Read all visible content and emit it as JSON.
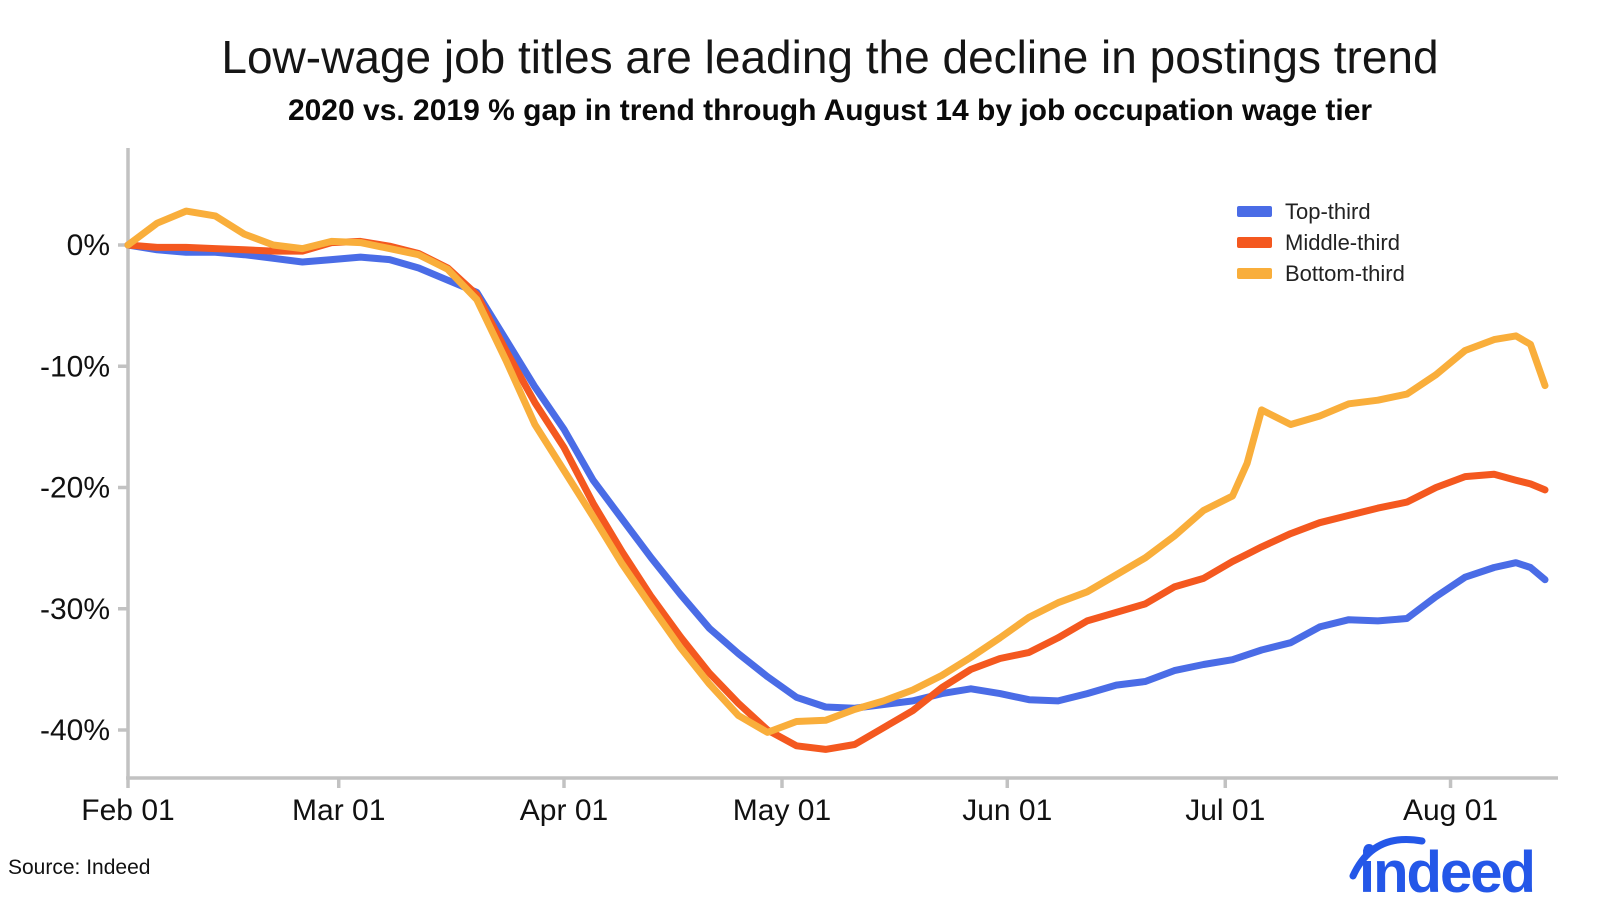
{
  "header": {
    "title": "Low-wage job titles are leading the decline in postings trend",
    "subtitle": "2020 vs. 2019 % gap in trend through August 14 by job occupation wage tier"
  },
  "footer": {
    "source": "Source: Indeed",
    "logo_text": "indeed",
    "logo_color": "#2457E8"
  },
  "colors": {
    "axis": "#C2C2C2",
    "tick_label": "#111111",
    "top_third": "#4A6CE6",
    "middle_third": "#F4581F",
    "bottom_third": "#F9AE3B"
  },
  "legend": [
    {
      "label": "Top-third",
      "color": "#4A6CE6"
    },
    {
      "label": "Middle-third",
      "color": "#F4581F"
    },
    {
      "label": "Bottom-third",
      "color": "#F9AE3B"
    }
  ],
  "chart_data": {
    "type": "line",
    "title": "Low-wage job titles are leading the decline in postings trend",
    "subtitle": "2020 vs. 2019 % gap in trend through August 14 by job occupation wage tier",
    "xlabel": "",
    "ylabel": "",
    "grid": false,
    "legend_position": "top-right",
    "x_unit": "days since Feb 01, 2020",
    "xlim_days": [
      0,
      195
    ],
    "ylim": [
      -44,
      8
    ],
    "x_tick_labels": [
      "Feb 01",
      "Mar 01",
      "Apr 01",
      "May 01",
      "Jun 01",
      "Jul 01",
      "Aug 01"
    ],
    "x_tick_days": [
      0,
      29,
      60,
      90,
      121,
      151,
      182
    ],
    "y_tick_labels": [
      "0%",
      "-10%",
      "-20%",
      "-30%",
      "-40%"
    ],
    "y_tick_values": [
      0,
      -10,
      -20,
      -30,
      -40
    ],
    "dates": [
      "Feb 01",
      "Feb 05",
      "Feb 09",
      "Feb 13",
      "Feb 17",
      "Feb 21",
      "Feb 25",
      "Feb 29",
      "Mar 04",
      "Mar 08",
      "Mar 12",
      "Mar 16",
      "Mar 20",
      "Mar 24",
      "Mar 28",
      "Apr 01",
      "Apr 05",
      "Apr 09",
      "Apr 13",
      "Apr 17",
      "Apr 21",
      "Apr 25",
      "Apr 29",
      "May 03",
      "May 07",
      "May 11",
      "May 15",
      "May 19",
      "May 23",
      "May 27",
      "May 31",
      "Jun 04",
      "Jun 08",
      "Jun 12",
      "Jun 16",
      "Jun 20",
      "Jun 24",
      "Jun 28",
      "Jul 02",
      "Jul 04",
      "Jul 06",
      "Jul 10",
      "Jul 14",
      "Jul 18",
      "Jul 22",
      "Jul 26",
      "Jul 30",
      "Aug 03",
      "Aug 07",
      "Aug 10",
      "Aug 12",
      "Aug 14"
    ],
    "days": [
      0,
      4,
      8,
      12,
      16,
      20,
      24,
      28,
      32,
      36,
      40,
      44,
      48,
      52,
      56,
      60,
      64,
      68,
      72,
      76,
      80,
      84,
      88,
      92,
      96,
      100,
      104,
      108,
      112,
      116,
      120,
      124,
      128,
      132,
      136,
      140,
      144,
      148,
      152,
      154,
      156,
      160,
      164,
      168,
      172,
      176,
      180,
      184,
      188,
      191,
      193,
      195
    ],
    "series": [
      {
        "name": "Top-third",
        "color": "#4A6CE6",
        "values": [
          0,
          -0.4,
          -0.6,
          -0.6,
          -0.8,
          -1.1,
          -1.4,
          -1.2,
          -1.0,
          -1.2,
          -1.9,
          -2.9,
          -3.9,
          -7.8,
          -11.7,
          -15.2,
          -19.4,
          -22.6,
          -25.8,
          -28.8,
          -31.6,
          -33.7,
          -35.6,
          -37.3,
          -38.1,
          -38.2,
          -37.9,
          -37.6,
          -37.0,
          -36.6,
          -37.0,
          -37.5,
          -37.6,
          -37.0,
          -36.3,
          -36.0,
          -35.1,
          -34.6,
          -34.2,
          -33.8,
          -33.4,
          -32.8,
          -31.5,
          -30.9,
          -31.0,
          -30.8,
          -29.0,
          -27.4,
          -26.6,
          -26.2,
          -26.6,
          -27.6
        ]
      },
      {
        "name": "Middle-third",
        "color": "#F4581F",
        "values": [
          0,
          -0.2,
          -0.2,
          -0.3,
          -0.4,
          -0.5,
          -0.5,
          0.2,
          0.3,
          -0.1,
          -0.7,
          -1.9,
          -4.1,
          -8.7,
          -13.0,
          -16.7,
          -21.3,
          -25.3,
          -29.0,
          -32.3,
          -35.3,
          -37.8,
          -40.0,
          -41.3,
          -41.6,
          -41.2,
          -39.8,
          -38.4,
          -36.5,
          -35.0,
          -34.1,
          -33.6,
          -32.4,
          -31.0,
          -30.3,
          -29.6,
          -28.2,
          -27.5,
          -26.1,
          -25.5,
          -24.9,
          -23.8,
          -22.9,
          -22.3,
          -21.7,
          -21.2,
          -20.0,
          -19.1,
          -18.9,
          -19.4,
          -19.7,
          -20.2
        ]
      },
      {
        "name": "Bottom-third",
        "color": "#F9AE3B",
        "values": [
          0,
          1.8,
          2.8,
          2.4,
          0.9,
          0.0,
          -0.3,
          0.3,
          0.2,
          -0.3,
          -0.8,
          -2.0,
          -4.5,
          -9.5,
          -14.8,
          -18.6,
          -22.4,
          -26.3,
          -29.8,
          -33.2,
          -36.2,
          -38.8,
          -40.2,
          -39.3,
          -39.2,
          -38.3,
          -37.6,
          -36.7,
          -35.5,
          -34.0,
          -32.4,
          -30.7,
          -29.5,
          -28.6,
          -27.2,
          -25.8,
          -24.0,
          -21.9,
          -20.7,
          -18.0,
          -13.6,
          -14.8,
          -14.1,
          -13.1,
          -12.8,
          -12.3,
          -10.7,
          -8.7,
          -7.8,
          -7.5,
          -8.2,
          -11.6
        ]
      }
    ]
  }
}
